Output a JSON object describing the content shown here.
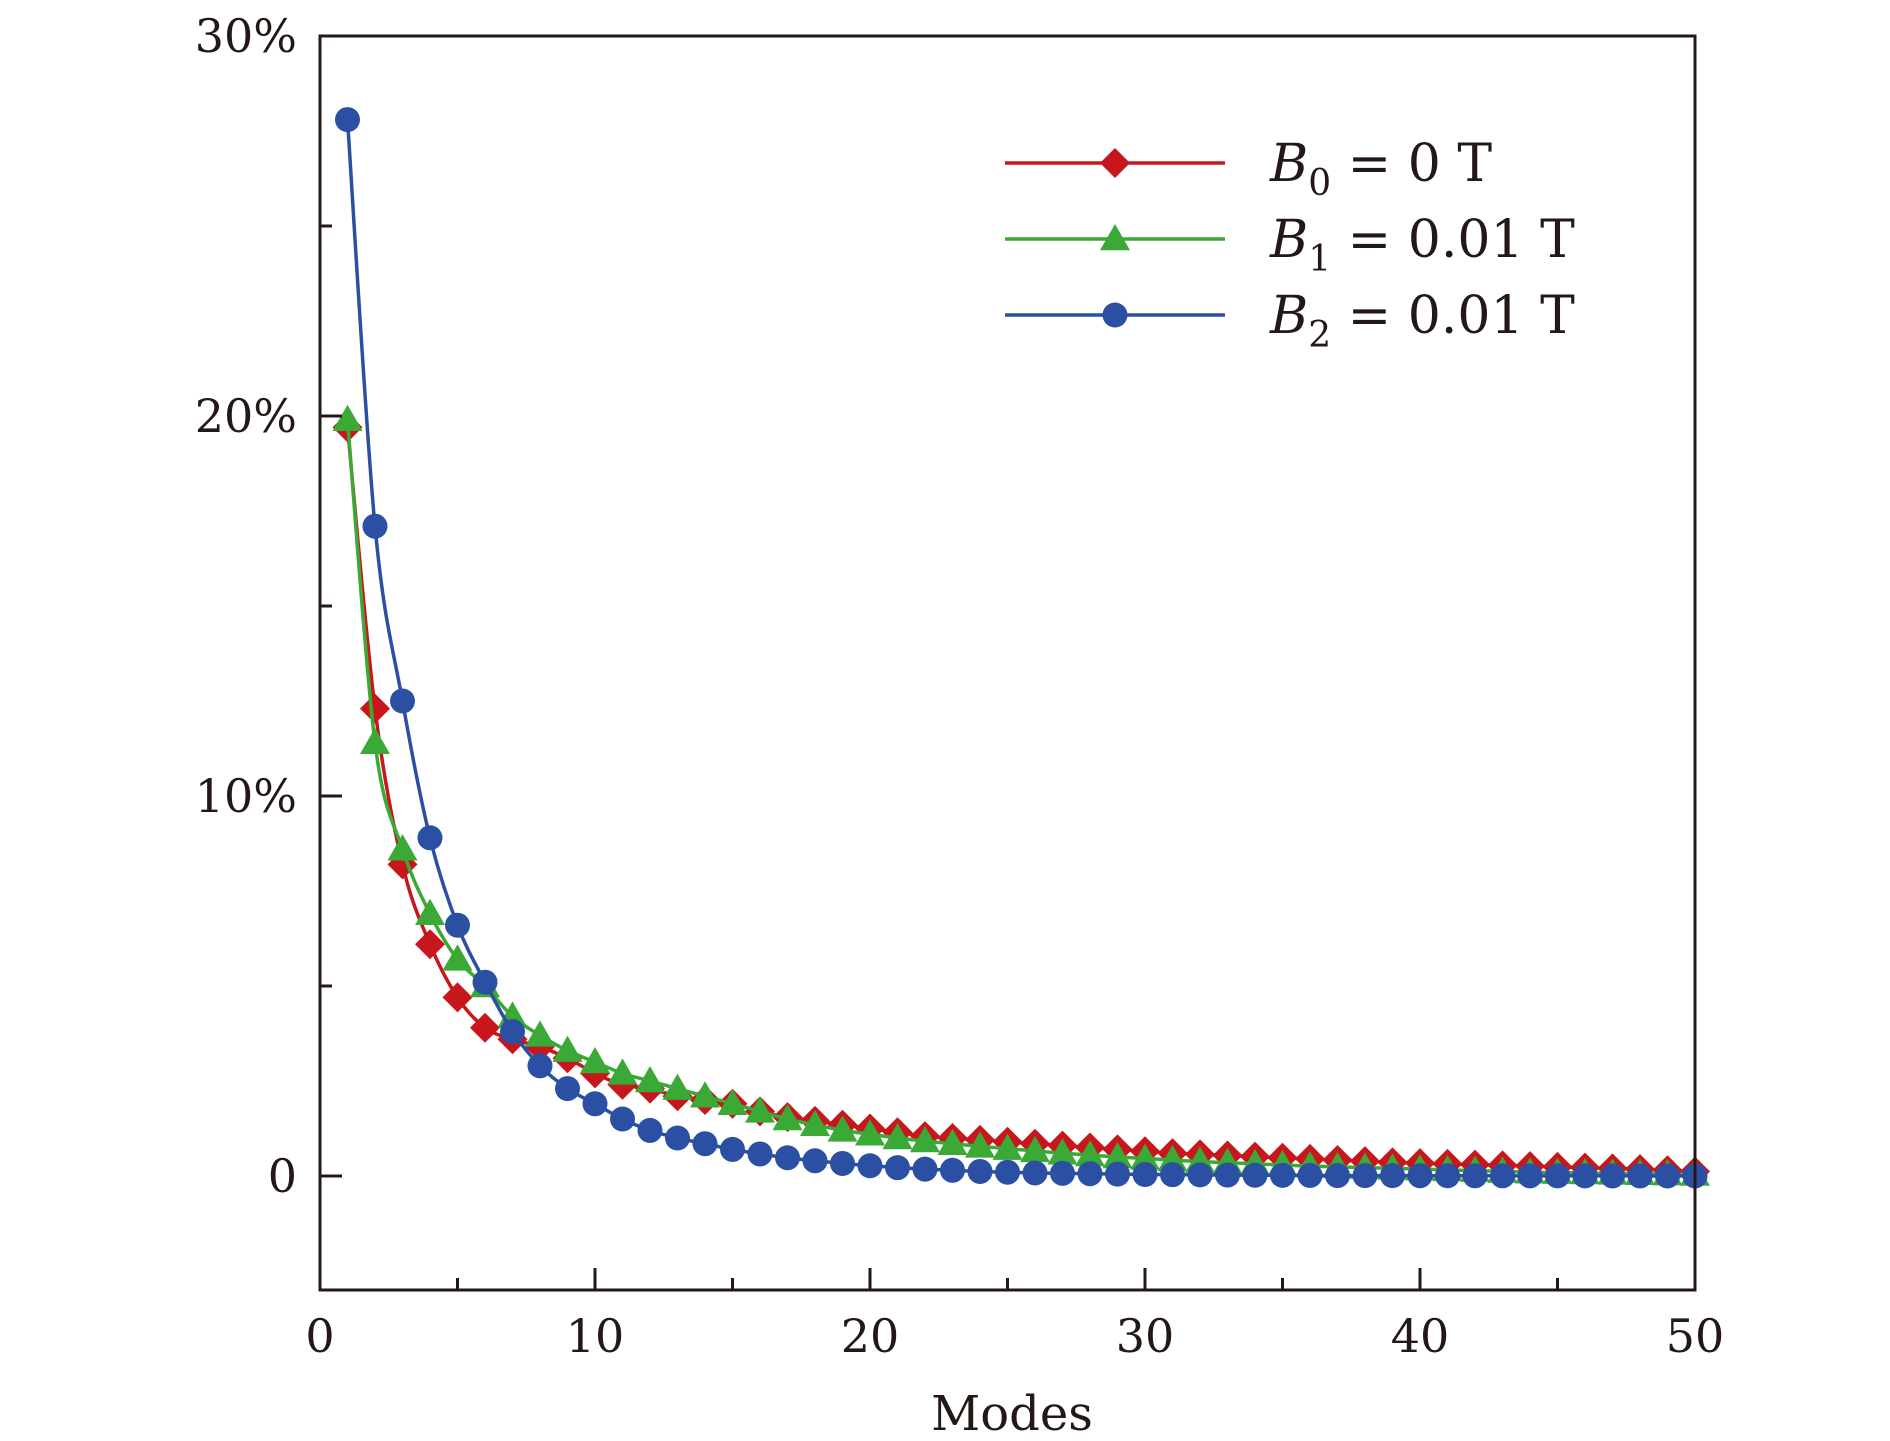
{
  "chart_data": {
    "type": "line",
    "title": "",
    "xlabel": "Modes",
    "ylabel": "",
    "xlim": [
      0,
      50
    ],
    "ylim": [
      -3,
      30
    ],
    "xticks": [
      0,
      10,
      20,
      30,
      40,
      50
    ],
    "xtick_labels": [
      "0",
      "10",
      "20",
      "30",
      "40",
      "50"
    ],
    "yticks": [
      0,
      10,
      20,
      30
    ],
    "ytick_labels": [
      "0",
      "10%",
      "20%",
      "30%"
    ],
    "legend_position": "top-right",
    "grid": false,
    "x": [
      1,
      2,
      3,
      4,
      5,
      6,
      7,
      8,
      9,
      10,
      11,
      12,
      13,
      14,
      15,
      16,
      17,
      18,
      19,
      20,
      21,
      22,
      23,
      24,
      25,
      26,
      27,
      28,
      29,
      30,
      31,
      32,
      33,
      34,
      35,
      36,
      37,
      38,
      39,
      40,
      41,
      42,
      43,
      44,
      45,
      46,
      47,
      48,
      49,
      50
    ],
    "series": [
      {
        "name": "B0 = 0 T",
        "color": "#c8161d",
        "marker": "diamond",
        "values": [
          19.7,
          12.3,
          8.2,
          6.1,
          4.7,
          3.9,
          3.6,
          3.4,
          3.1,
          2.7,
          2.4,
          2.3,
          2.1,
          2.0,
          1.9,
          1.7,
          1.55,
          1.45,
          1.35,
          1.25,
          1.15,
          1.05,
          1.0,
          0.95,
          0.9,
          0.85,
          0.8,
          0.75,
          0.7,
          0.65,
          0.6,
          0.57,
          0.54,
          0.51,
          0.48,
          0.45,
          0.42,
          0.39,
          0.36,
          0.34,
          0.32,
          0.3,
          0.28,
          0.26,
          0.24,
          0.22,
          0.2,
          0.18,
          0.15,
          0.12
        ]
      },
      {
        "name": "B1 = 0.01 T",
        "color": "#3aa935",
        "marker": "triangle",
        "values": [
          19.9,
          11.4,
          8.6,
          6.9,
          5.7,
          5.0,
          4.2,
          3.7,
          3.3,
          3.0,
          2.7,
          2.5,
          2.3,
          2.1,
          1.9,
          1.7,
          1.5,
          1.35,
          1.2,
          1.1,
          1.0,
          0.92,
          0.85,
          0.78,
          0.72,
          0.66,
          0.6,
          0.55,
          0.5,
          0.46,
          0.42,
          0.38,
          0.35,
          0.32,
          0.29,
          0.26,
          0.24,
          0.22,
          0.2,
          0.18,
          0.16,
          0.14,
          0.12,
          0.1,
          0.09,
          0.08,
          0.07,
          0.06,
          0.05,
          0.04
        ]
      },
      {
        "name": "B2 = 0.01 T",
        "color": "#2a4fa3",
        "marker": "circle",
        "values": [
          27.8,
          17.1,
          12.5,
          8.9,
          6.6,
          5.1,
          3.8,
          2.9,
          2.3,
          1.9,
          1.5,
          1.2,
          1.0,
          0.85,
          0.7,
          0.58,
          0.48,
          0.4,
          0.33,
          0.27,
          0.22,
          0.18,
          0.15,
          0.12,
          0.1,
          0.08,
          0.07,
          0.06,
          0.05,
          0.04,
          0.035,
          0.03,
          0.025,
          0.02,
          0.018,
          0.015,
          0.012,
          0.01,
          0.01,
          0.008,
          0.007,
          0.006,
          0.005,
          0.004,
          0.003,
          0.003,
          0.002,
          0.002,
          0.001,
          0.001
        ]
      }
    ]
  },
  "legend": [
    {
      "base": "B",
      "sub": "0",
      "rest": " = 0 T"
    },
    {
      "base": "B",
      "sub": "1",
      "rest": " = 0.01 T"
    },
    {
      "base": "B",
      "sub": "2",
      "rest": " = 0.01 T"
    }
  ]
}
